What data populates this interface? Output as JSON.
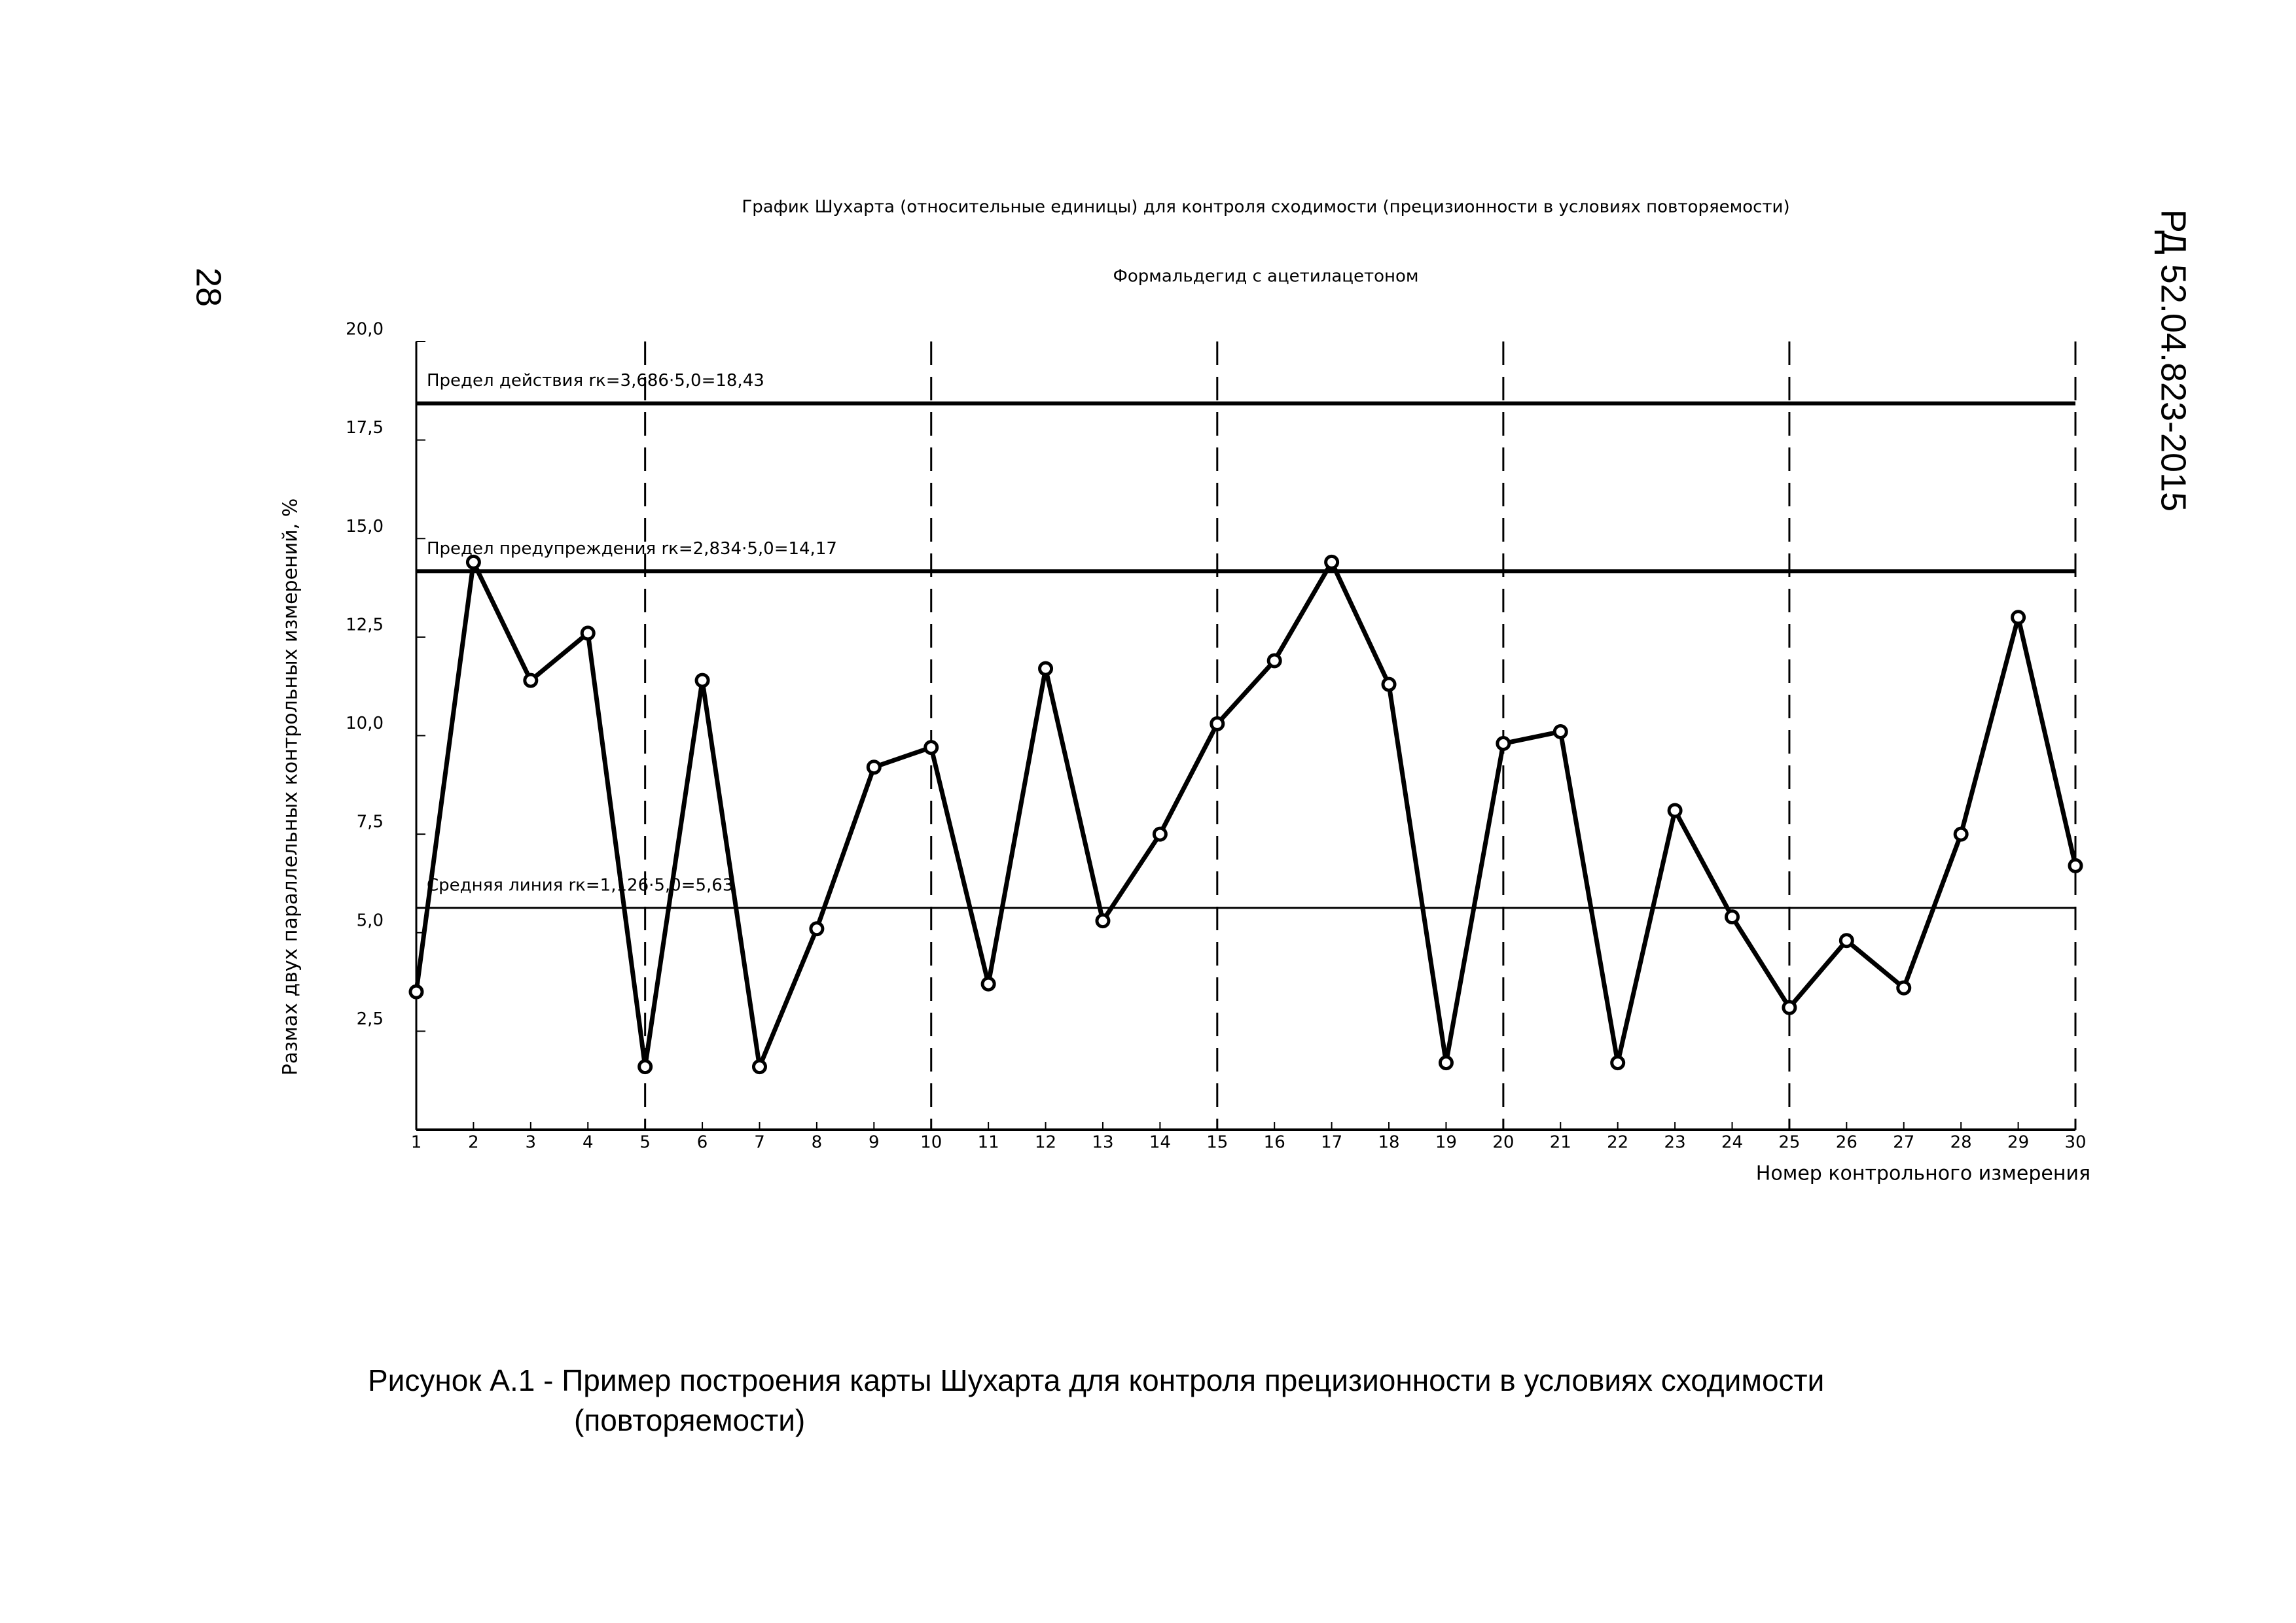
{
  "page_number": "28",
  "document_id": "РД 52.04.823-2015",
  "caption": [
    "Рисунок А.1 - Пример построения карты Шухарта для контроля прецизионности в условиях сходимости",
    "(повторяемости)"
  ],
  "chart_data": {
    "type": "line",
    "title": "График Шухарта (относительные единицы) для контроля сходимости (прецизионности в условиях повторяемости)",
    "subtitle": "Формальдегид с ацетилацетоном",
    "x_label": "Номер контрольного измерения",
    "y_label": "Размах двух параллельных контрольных измерений, %",
    "x": [
      1,
      2,
      3,
      4,
      5,
      6,
      7,
      8,
      9,
      10,
      11,
      12,
      13,
      14,
      15,
      16,
      17,
      18,
      19,
      20,
      21,
      22,
      23,
      24,
      25,
      26,
      27,
      28,
      29,
      30
    ],
    "series": [
      {
        "color": "#000000",
        "values": [
          3.5,
          14.4,
          11.4,
          12.6,
          1.6,
          11.4,
          1.6,
          5.1,
          9.2,
          9.7,
          3.7,
          11.7,
          5.3,
          7.5,
          10.3,
          11.9,
          14.4,
          11.3,
          1.7,
          9.8,
          10.1,
          1.7,
          8.1,
          5.4,
          3.1,
          4.8,
          3.6,
          7.5,
          13.0,
          6.7
        ]
      }
    ],
    "reference_lines": [
      {
        "label": "Предел действия rк=3,686·5,0=18,43",
        "value": 18.43
      },
      {
        "label": "Предел предупреждения rк=2,834·5,0=14,17",
        "value": 14.17
      },
      {
        "label": "Средняя линия rк=1,126·5,0=5,63",
        "value": 5.63
      }
    ],
    "vertical_lines": [
      5,
      10,
      15,
      20,
      25,
      30
    ],
    "xlim": [
      1,
      30
    ],
    "xticks": [
      1,
      2,
      3,
      4,
      5,
      6,
      7,
      8,
      9,
      10,
      11,
      12,
      13,
      14,
      15,
      16,
      17,
      18,
      19,
      20,
      21,
      22,
      23,
      24,
      25,
      26,
      27,
      28,
      29,
      30
    ],
    "ylim": [
      0,
      20
    ],
    "yticks": [
      {
        "value": 2.5,
        "label": "2,5"
      },
      {
        "value": 5,
        "label": "5,0"
      },
      {
        "value": 7.5,
        "label": "7,5"
      },
      {
        "value": 10,
        "label": "10,0"
      },
      {
        "value": 12.5,
        "label": "12,5"
      },
      {
        "value": 15,
        "label": "15,0"
      },
      {
        "value": 17.5,
        "label": "17,5"
      },
      {
        "value": 20,
        "label": "20,0"
      }
    ]
  }
}
